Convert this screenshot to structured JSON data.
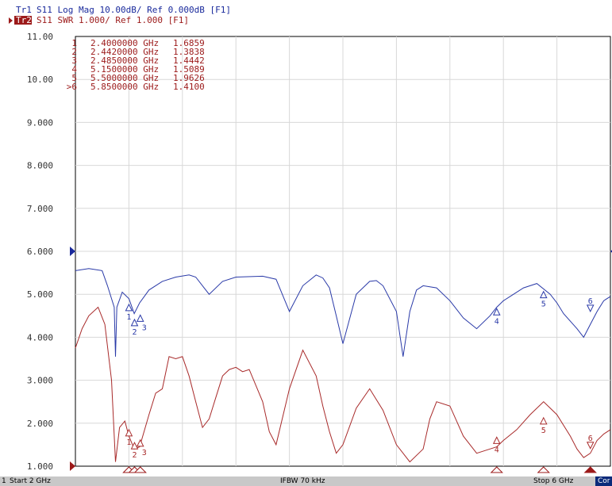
{
  "header": {
    "trace1": {
      "tag": "Tr1",
      "text": "S11 Log Mag 10.00dB/ Ref 0.000dB [F1]",
      "color": "#1a2a9c"
    },
    "trace2": {
      "tag": "Tr2",
      "text": "S11 SWR 1.000/ Ref 1.000 [F1]",
      "color": "#9c1a1a"
    }
  },
  "markers_table": {
    "rows": [
      {
        "id": "1",
        "freq": "2.4000000 GHz",
        "value": "1.6859"
      },
      {
        "id": "2",
        "freq": "2.4420000 GHz",
        "value": "1.3838"
      },
      {
        "id": "3",
        "freq": "2.4850000 GHz",
        "value": "1.4442"
      },
      {
        "id": "4",
        "freq": "5.1500000 GHz",
        "value": "1.5089"
      },
      {
        "id": "5",
        "freq": "5.5000000 GHz",
        "value": "1.9626"
      },
      {
        "id": ">6",
        "freq": "5.8500000 GHz",
        "value": "1.4100"
      }
    ]
  },
  "status": {
    "channel": "1",
    "start": "Start 2 GHz",
    "ifbw": "IFBW 70 kHz",
    "stop": "Stop 6 GHz",
    "cor": "Cor"
  },
  "chart_data": {
    "type": "line",
    "x_unit": "GHz",
    "xlim": [
      2,
      6
    ],
    "ylim": [
      1,
      11
    ],
    "y_ticks": [
      "11.00",
      "10.00",
      "9.000",
      "8.000",
      "7.000",
      "6.000",
      "5.000",
      "4.000",
      "3.000",
      "2.000",
      "1.000"
    ],
    "grid": true,
    "series": [
      {
        "name": "Tr1",
        "color": "#2a3aa8",
        "ref_level": 6.0,
        "x": [
          2.0,
          2.1,
          2.2,
          2.24,
          2.29,
          2.3,
          2.31,
          2.35,
          2.4,
          2.44,
          2.48,
          2.55,
          2.65,
          2.75,
          2.85,
          2.9,
          3.0,
          3.1,
          3.2,
          3.4,
          3.5,
          3.6,
          3.7,
          3.8,
          3.85,
          3.9,
          3.95,
          4.0,
          4.1,
          4.2,
          4.25,
          4.3,
          4.4,
          4.45,
          4.5,
          4.55,
          4.6,
          4.7,
          4.8,
          4.9,
          5.0,
          5.1,
          5.15,
          5.2,
          5.25,
          5.35,
          5.45,
          5.55,
          5.6,
          5.65,
          5.75,
          5.8,
          5.85,
          5.9,
          5.95,
          6.0
        ],
        "y": [
          5.55,
          5.6,
          5.55,
          5.2,
          4.7,
          3.55,
          4.7,
          5.05,
          4.9,
          4.55,
          4.8,
          5.1,
          5.3,
          5.4,
          5.45,
          5.4,
          5.0,
          5.3,
          5.4,
          5.42,
          5.35,
          4.6,
          5.2,
          5.45,
          5.38,
          5.15,
          4.5,
          3.85,
          5.0,
          5.3,
          5.32,
          5.2,
          4.6,
          3.55,
          4.6,
          5.1,
          5.2,
          5.15,
          4.85,
          4.45,
          4.2,
          4.5,
          4.7,
          4.85,
          4.95,
          5.15,
          5.25,
          5.0,
          4.8,
          4.55,
          4.2,
          4.0,
          4.3,
          4.6,
          4.85,
          4.95
        ]
      },
      {
        "name": "Tr2",
        "color": "#a82a2a",
        "ref_level": 1.0,
        "x": [
          2.0,
          2.05,
          2.1,
          2.17,
          2.22,
          2.27,
          2.3,
          2.33,
          2.37,
          2.4,
          2.44,
          2.48,
          2.55,
          2.6,
          2.65,
          2.7,
          2.75,
          2.8,
          2.85,
          2.9,
          2.95,
          3.0,
          3.05,
          3.1,
          3.15,
          3.2,
          3.25,
          3.3,
          3.4,
          3.45,
          3.5,
          3.6,
          3.7,
          3.8,
          3.85,
          3.9,
          3.95,
          4.0,
          4.1,
          4.2,
          4.3,
          4.4,
          4.5,
          4.6,
          4.65,
          4.7,
          4.8,
          4.9,
          5.0,
          5.1,
          5.15,
          5.2,
          5.3,
          5.4,
          5.5,
          5.6,
          5.7,
          5.75,
          5.8,
          5.85,
          5.9,
          5.95,
          6.0
        ],
        "y": [
          3.75,
          4.2,
          4.5,
          4.7,
          4.3,
          3.0,
          1.1,
          1.9,
          2.05,
          1.7,
          1.4,
          1.45,
          2.2,
          2.7,
          2.8,
          3.55,
          3.5,
          3.55,
          3.1,
          2.5,
          1.9,
          2.1,
          2.6,
          3.1,
          3.25,
          3.3,
          3.2,
          3.25,
          2.5,
          1.8,
          1.5,
          2.8,
          3.7,
          3.1,
          2.4,
          1.8,
          1.3,
          1.5,
          2.35,
          2.8,
          2.3,
          1.5,
          1.1,
          1.4,
          2.1,
          2.5,
          2.4,
          1.7,
          1.3,
          1.4,
          1.45,
          1.6,
          1.85,
          2.2,
          2.5,
          2.2,
          1.7,
          1.4,
          1.2,
          1.3,
          1.6,
          1.75,
          1.85
        ]
      }
    ],
    "markers": [
      {
        "id": "1",
        "x": 2.4,
        "tr1": 4.6,
        "tr2": 1.6859
      },
      {
        "id": "2",
        "x": 2.442,
        "tr1": 4.25,
        "tr2": 1.3838
      },
      {
        "id": "3",
        "x": 2.485,
        "tr1": 4.35,
        "tr2": 1.4442
      },
      {
        "id": "4",
        "x": 5.15,
        "tr1": 4.5,
        "tr2": 1.5089
      },
      {
        "id": "5",
        "x": 5.5,
        "tr1": 4.9,
        "tr2": 1.9626
      },
      {
        "id": "6",
        "x": 5.85,
        "tr1": 4.6,
        "tr2": 1.41
      }
    ]
  }
}
